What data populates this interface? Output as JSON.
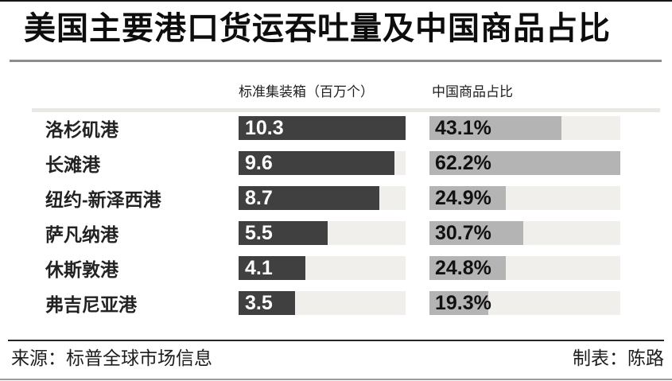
{
  "page": {
    "title": "美国主要港口货运吞吐量及中国商品占比",
    "col_header_left": "标准集装箱（百万个）",
    "col_header_right": "中国商品占比",
    "source": "来源：标普全球市场信息",
    "credit": "制表：陈路"
  },
  "colors": {
    "teu_bar": "#404040",
    "share_bar": "#b4b4b4",
    "bar_track": "#f0efec",
    "title_rule": "#8c8c8c",
    "top_border": "#141414",
    "footer_rule": "#262626",
    "bottom_border": "#9b9b9b"
  },
  "rows": [
    {
      "port": "洛杉矶港",
      "teu": 10.3,
      "teu_label": "10.3",
      "share": 43.1,
      "share_label": "43.1%"
    },
    {
      "port": "长滩港",
      "teu": 9.6,
      "teu_label": "9.6",
      "share": 62.2,
      "share_label": "62.2%"
    },
    {
      "port": "纽约-新泽西港",
      "teu": 8.7,
      "teu_label": "8.7",
      "share": 24.9,
      "share_label": "24.9%"
    },
    {
      "port": "萨凡纳港",
      "teu": 5.5,
      "teu_label": "5.5",
      "share": 30.7,
      "share_label": "30.7%"
    },
    {
      "port": "休斯敦港",
      "teu": 4.1,
      "teu_label": "4.1",
      "share": 24.8,
      "share_label": "24.8%"
    },
    {
      "port": "弗吉尼亚港",
      "teu": 3.5,
      "teu_label": "3.5",
      "share": 19.3,
      "share_label": "19.3%"
    }
  ],
  "chart_data": {
    "type": "bar",
    "orientation": "horizontal",
    "title": "美国主要港口货运吞吐量及中国商品占比",
    "categories": [
      "洛杉矶港",
      "长滩港",
      "纽约-新泽西港",
      "萨凡纳港",
      "休斯敦港",
      "弗吉尼亚港"
    ],
    "series": [
      {
        "name": "标准集装箱（百万个）",
        "values": [
          10.3,
          9.6,
          8.7,
          5.5,
          4.1,
          3.5
        ]
      },
      {
        "name": "中国商品占比",
        "unit": "%",
        "values": [
          43.1,
          62.2,
          24.9,
          30.7,
          24.8,
          19.3
        ]
      }
    ],
    "value_labels": "inside-left",
    "grid": false,
    "legend_position": "top",
    "bars_scaled_to_series_max": true,
    "source": "标普全球市场信息",
    "credit": "陈路"
  }
}
